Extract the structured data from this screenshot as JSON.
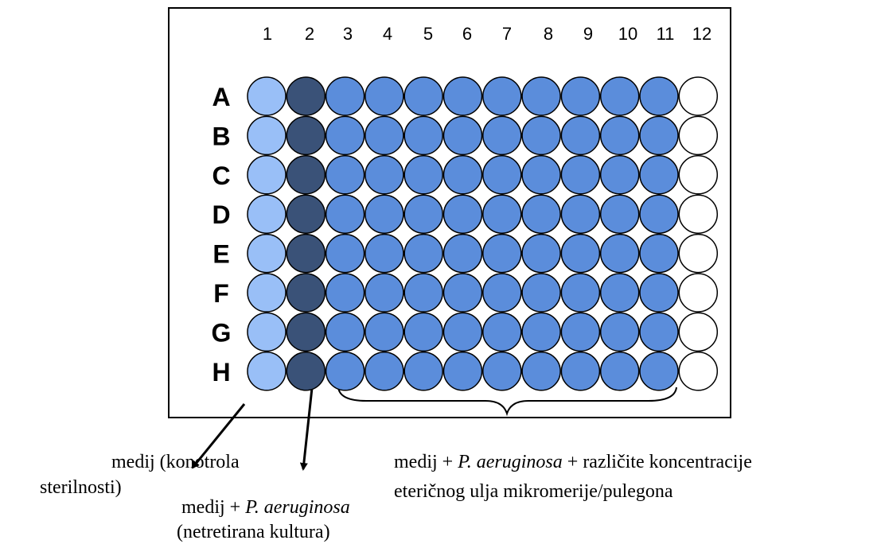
{
  "plate": {
    "columns": [
      "1",
      "2",
      "3",
      "4",
      "5",
      "6",
      "7",
      "8",
      "9",
      "10",
      "11",
      "12"
    ],
    "rows": [
      "A",
      "B",
      "C",
      "D",
      "E",
      "F",
      "G",
      "H"
    ]
  },
  "captions": [
    {
      "lines": [
        [
          {
            "text": "medij (konotrola"
          }
        ],
        [
          {
            "text": "sterilnosti)"
          }
        ]
      ]
    },
    {
      "lines": [
        [
          {
            "text": "medij + "
          },
          {
            "text": "P. aeruginosa",
            "italic": true
          }
        ],
        [
          {
            "text": "(netretirana kultura)"
          }
        ]
      ]
    },
    {
      "lines": [
        [
          {
            "text": "medij + "
          },
          {
            "text": "P. aeruginosa",
            "italic": true
          },
          {
            "text": " + različite koncentracije"
          }
        ],
        [
          {
            "text": "eteričnog ulja mikromerije/pulegona"
          }
        ]
      ]
    }
  ]
}
